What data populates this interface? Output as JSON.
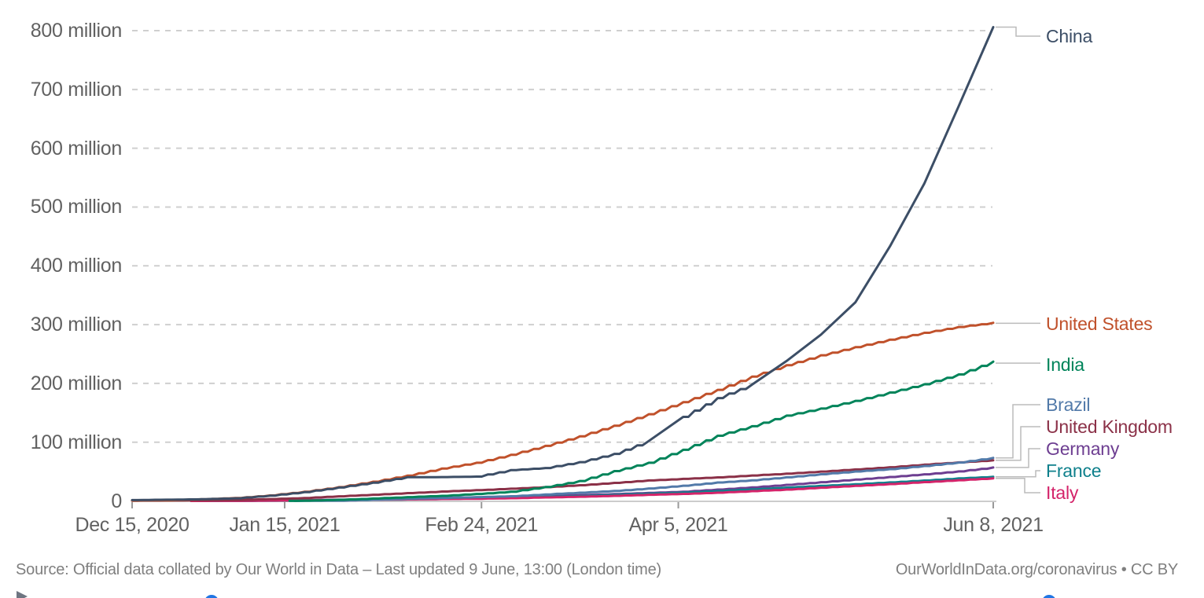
{
  "chart_data": {
    "type": "line",
    "title": "",
    "grid": true,
    "legend_position": "right-labels",
    "ylim": [
      0,
      810
    ],
    "y_unit": "million doses",
    "x_start": "Dec 15, 2020",
    "x_end": "Jun 8, 2021",
    "x_total_days": 175,
    "x_ticks": [
      {
        "label": "Dec 15, 2020",
        "day": 0
      },
      {
        "label": "Jan 15, 2021",
        "day": 31
      },
      {
        "label": "Feb 24, 2021",
        "day": 71
      },
      {
        "label": "Apr 5, 2021",
        "day": 111
      },
      {
        "label": "Jun 8, 2021",
        "day": 175
      }
    ],
    "y_ticks": [
      {
        "label": "0",
        "value": 0
      },
      {
        "label": "100 million",
        "value": 100
      },
      {
        "label": "200 million",
        "value": 200
      },
      {
        "label": "300 million",
        "value": 300
      },
      {
        "label": "400 million",
        "value": 400
      },
      {
        "label": "500 million",
        "value": 500
      },
      {
        "label": "600 million",
        "value": 600
      },
      {
        "label": "700 million",
        "value": 700
      },
      {
        "label": "800 million",
        "value": 800
      }
    ],
    "series": [
      {
        "name": "Germany",
        "color": "#6D3E91",
        "points": [
          [
            12,
            0
          ],
          [
            21,
            0.3
          ],
          [
            28,
            0.8
          ],
          [
            35,
            1.4
          ],
          [
            42,
            2.1
          ],
          [
            49,
            2.8
          ],
          [
            56,
            3.6
          ],
          [
            63,
            4.5
          ],
          [
            70,
            5.6
          ],
          [
            77,
            6.8
          ],
          [
            84,
            8.2
          ],
          [
            91,
            9.9
          ],
          [
            98,
            11.7
          ],
          [
            105,
            13.8
          ],
          [
            112,
            15.7
          ],
          [
            119,
            19.4
          ],
          [
            126,
            23.1
          ],
          [
            133,
            27.4
          ],
          [
            140,
            31.9
          ],
          [
            147,
            36.3
          ],
          [
            154,
            40.8
          ],
          [
            161,
            45.3
          ],
          [
            168,
            50.3
          ],
          [
            175,
            56.9
          ]
        ]
      },
      {
        "name": "France",
        "color": "#0F808C",
        "points": [
          [
            12,
            0
          ],
          [
            21,
            0.1
          ],
          [
            28,
            0.3
          ],
          [
            35,
            0.9
          ],
          [
            42,
            1.4
          ],
          [
            49,
            2.0
          ],
          [
            56,
            2.7
          ],
          [
            63,
            3.5
          ],
          [
            70,
            4.4
          ],
          [
            77,
            5.5
          ],
          [
            84,
            6.9
          ],
          [
            91,
            8.4
          ],
          [
            98,
            10.3
          ],
          [
            105,
            12.4
          ],
          [
            112,
            14.3
          ],
          [
            119,
            16.9
          ],
          [
            126,
            19.8
          ],
          [
            133,
            22.7
          ],
          [
            140,
            25.7
          ],
          [
            147,
            28.5
          ],
          [
            154,
            31.6
          ],
          [
            161,
            34.8
          ],
          [
            168,
            38.3
          ],
          [
            175,
            41.1
          ]
        ]
      },
      {
        "name": "Italy",
        "color": "#D4246A",
        "points": [
          [
            12,
            0
          ],
          [
            21,
            0.2
          ],
          [
            28,
            0.7
          ],
          [
            35,
            1.2
          ],
          [
            42,
            1.6
          ],
          [
            49,
            2.2
          ],
          [
            56,
            2.7
          ],
          [
            63,
            3.3
          ],
          [
            70,
            3.8
          ],
          [
            77,
            4.7
          ],
          [
            84,
            6.0
          ],
          [
            91,
            7.2
          ],
          [
            98,
            8.7
          ],
          [
            105,
            10.5
          ],
          [
            112,
            12.0
          ],
          [
            119,
            14.1
          ],
          [
            126,
            16.7
          ],
          [
            133,
            19.4
          ],
          [
            140,
            22.6
          ],
          [
            147,
            25.7
          ],
          [
            154,
            28.7
          ],
          [
            161,
            32.1
          ],
          [
            168,
            35.3
          ],
          [
            175,
            38.5
          ]
        ]
      },
      {
        "name": "United Kingdom",
        "color": "#8B3148",
        "points": [
          [
            0,
            0.6
          ],
          [
            7,
            0.8
          ],
          [
            14,
            1.0
          ],
          [
            21,
            1.5
          ],
          [
            28,
            3.2
          ],
          [
            35,
            5.1
          ],
          [
            42,
            7.9
          ],
          [
            49,
            10.5
          ],
          [
            56,
            13.3
          ],
          [
            63,
            16.1
          ],
          [
            70,
            18.3
          ],
          [
            77,
            20.9
          ],
          [
            84,
            23.5
          ],
          [
            91,
            26.8
          ],
          [
            98,
            30.7
          ],
          [
            105,
            34.9
          ],
          [
            112,
            37.5
          ],
          [
            119,
            40.1
          ],
          [
            126,
            43.3
          ],
          [
            133,
            46.4
          ],
          [
            140,
            50.0
          ],
          [
            147,
            53.6
          ],
          [
            154,
            57.4
          ],
          [
            161,
            61.8
          ],
          [
            168,
            65.6
          ],
          [
            175,
            69.2
          ]
        ]
      },
      {
        "name": "Brazil",
        "color": "#527AA9",
        "points": [
          [
            33,
            0.1
          ],
          [
            42,
            0.6
          ],
          [
            49,
            2.2
          ],
          [
            56,
            3.8
          ],
          [
            63,
            5.1
          ],
          [
            70,
            6.5
          ],
          [
            77,
            8.0
          ],
          [
            84,
            11.1
          ],
          [
            91,
            14.1
          ],
          [
            98,
            17.1
          ],
          [
            105,
            21.2
          ],
          [
            112,
            25.9
          ],
          [
            119,
            31.4
          ],
          [
            126,
            35.2
          ],
          [
            133,
            40.2
          ],
          [
            140,
            45.5
          ],
          [
            147,
            50.1
          ],
          [
            154,
            54.1
          ],
          [
            161,
            59.5
          ],
          [
            168,
            65.4
          ],
          [
            175,
            73.3
          ]
        ]
      },
      {
        "name": "India",
        "color": "#00845A",
        "points": [
          [
            32,
            0.2
          ],
          [
            35,
            0.5
          ],
          [
            42,
            2.0
          ],
          [
            49,
            4.1
          ],
          [
            56,
            6.6
          ],
          [
            63,
            8.7
          ],
          [
            70,
            11.9
          ],
          [
            77,
            15.6
          ],
          [
            84,
            23.6
          ],
          [
            91,
            33.9
          ],
          [
            98,
            50.8
          ],
          [
            105,
            65.0
          ],
          [
            112,
            87.0
          ],
          [
            119,
            111.0
          ],
          [
            126,
            127.1
          ],
          [
            133,
            145.2
          ],
          [
            140,
            157.2
          ],
          [
            147,
            170.3
          ],
          [
            154,
            184.4
          ],
          [
            161,
            198.5
          ],
          [
            168,
            215.2
          ],
          [
            175,
            237.0
          ]
        ]
      },
      {
        "name": "United States",
        "color": "#C0512B",
        "points": [
          [
            0,
            0.6
          ],
          [
            7,
            1.1
          ],
          [
            14,
            2.8
          ],
          [
            21,
            5.0
          ],
          [
            28,
            9.3
          ],
          [
            35,
            15.7
          ],
          [
            42,
            23.5
          ],
          [
            49,
            32.8
          ],
          [
            56,
            43.2
          ],
          [
            63,
            55.2
          ],
          [
            70,
            65.0
          ],
          [
            77,
            78.6
          ],
          [
            84,
            93.7
          ],
          [
            91,
            110.0
          ],
          [
            98,
            128.0
          ],
          [
            105,
            147.6
          ],
          [
            112,
            168.0
          ],
          [
            119,
            189.0
          ],
          [
            126,
            211.6
          ],
          [
            133,
            230.8
          ],
          [
            140,
            247.8
          ],
          [
            147,
            261.6
          ],
          [
            154,
            274.4
          ],
          [
            161,
            286.0
          ],
          [
            168,
            296.0
          ],
          [
            175,
            303.0
          ]
        ]
      },
      {
        "name": "China",
        "color": "#3C4E66",
        "points": [
          [
            0,
            1.5
          ],
          [
            7,
            2.2
          ],
          [
            14,
            3.0
          ],
          [
            21,
            4.5
          ],
          [
            28,
            9.0
          ],
          [
            35,
            15.0
          ],
          [
            42,
            22.8
          ],
          [
            49,
            31.2
          ],
          [
            56,
            40.5
          ],
          [
            63,
            40.6
          ],
          [
            70,
            41.5
          ],
          [
            77,
            52.5
          ],
          [
            84,
            56.0
          ],
          [
            91,
            66.0
          ],
          [
            98,
            80.0
          ],
          [
            105,
            102.0
          ],
          [
            112,
            143.0
          ],
          [
            119,
            175.0
          ],
          [
            126,
            198.0
          ],
          [
            133,
            238.0
          ],
          [
            140,
            283.0
          ],
          [
            147,
            338.0
          ],
          [
            154,
            433.0
          ],
          [
            161,
            540.0
          ],
          [
            168,
            672.0
          ],
          [
            175,
            806.0
          ]
        ]
      }
    ]
  },
  "footer": {
    "source": "Source: Official data collated by Our World in Data – Last updated 9 June, 13:00 (London time)",
    "attribution": "OurWorldInData.org/coronavirus • CC BY"
  },
  "controls": {
    "play_icon": "play-icon",
    "play_color": "#6e7581",
    "handle_color": "#2176E4"
  },
  "colors": {
    "gridline": "#cfcfcf",
    "axis_line": "#cccccc",
    "tick_mark": "#999999",
    "connector": "#bbbbbb",
    "axis_text": "#616161",
    "footer_text": "#7f7f7f"
  }
}
